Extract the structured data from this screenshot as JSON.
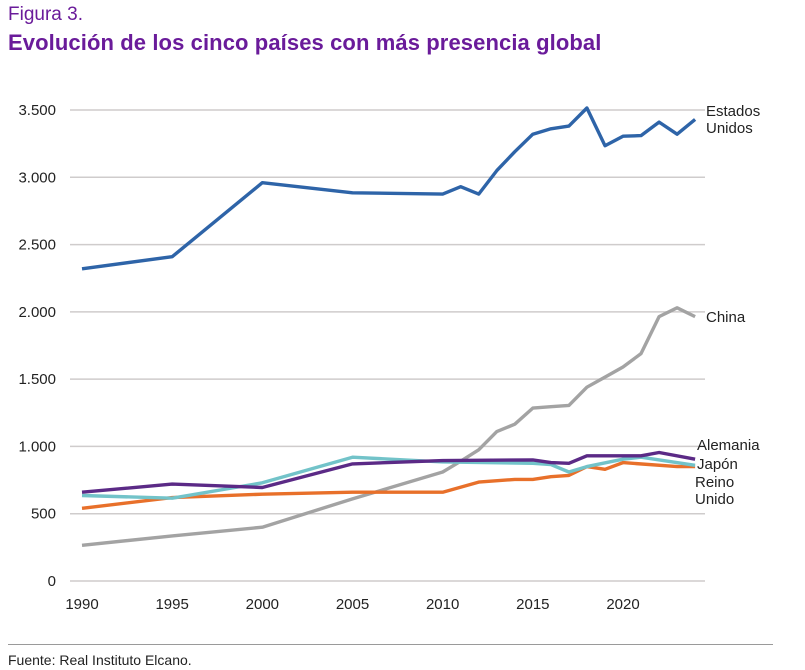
{
  "figure": {
    "label": "Figura 3.",
    "title": "Evolución de los cinco países con más presencia global",
    "source": "Fuente: Real Instituto Elcano."
  },
  "chart_data": {
    "type": "line",
    "title": "Evolución de los cinco países con más presencia global",
    "xlabel": "",
    "ylabel": "",
    "xlim": [
      1990,
      2024
    ],
    "ylim": [
      0,
      3500
    ],
    "grid": true,
    "legend": "inline-right",
    "x_ticks": [
      1990,
      1995,
      2000,
      2005,
      2010,
      2015,
      2020
    ],
    "x_tick_labels": [
      "1990",
      "1995",
      "2000",
      "2005",
      "2010",
      "2015",
      "2020"
    ],
    "y_ticks": [
      0,
      500,
      1000,
      1500,
      2000,
      2500,
      3000,
      3500
    ],
    "y_tick_labels": [
      "0",
      "500",
      "1.000",
      "1.500",
      "2.000",
      "2.500",
      "3.000",
      "3.500"
    ],
    "series": [
      {
        "name": "Estados Unidos",
        "label_lines": [
          "Estados",
          "Unidos"
        ],
        "color": "#2e64a8",
        "x": [
          1990,
          1995,
          2000,
          2005,
          2010,
          2011,
          2012,
          2013,
          2014,
          2015,
          2016,
          2017,
          2018,
          2019,
          2020,
          2021,
          2022,
          2023,
          2024
        ],
        "values": [
          2320,
          2410,
          2960,
          2885,
          2875,
          2930,
          2875,
          3050,
          3190,
          3320,
          3360,
          3380,
          3515,
          3235,
          3305,
          3310,
          3410,
          3320,
          3430
        ]
      },
      {
        "name": "China",
        "label_lines": [
          "China"
        ],
        "color": "#a3a3a3",
        "x": [
          1990,
          1995,
          2000,
          2005,
          2010,
          2011,
          2012,
          2013,
          2014,
          2015,
          2016,
          2017,
          2018,
          2019,
          2020,
          2021,
          2022,
          2023,
          2024
        ],
        "values": [
          265,
          335,
          400,
          610,
          810,
          890,
          975,
          1110,
          1165,
          1285,
          1295,
          1305,
          1440,
          1515,
          1590,
          1690,
          1965,
          2030,
          1965
        ]
      },
      {
        "name": "Japón",
        "label_lines": [
          "Japón"
        ],
        "color": "#72c3c9",
        "x": [
          1990,
          1995,
          2000,
          2005,
          2010,
          2015,
          2016,
          2017,
          2018,
          2020,
          2021,
          2024
        ],
        "values": [
          635,
          615,
          730,
          920,
          885,
          875,
          865,
          810,
          850,
          905,
          920,
          860
        ]
      },
      {
        "name": "Alemania",
        "label_lines": [
          "Alemania"
        ],
        "color": "#5b2a86",
        "x": [
          1990,
          1995,
          2000,
          2005,
          2010,
          2015,
          2016,
          2017,
          2018,
          2020,
          2021,
          2022,
          2024
        ],
        "values": [
          660,
          720,
          695,
          870,
          895,
          900,
          880,
          875,
          930,
          930,
          930,
          955,
          905
        ]
      },
      {
        "name": "Reino Unido",
        "label_lines": [
          "Reino",
          "Unido"
        ],
        "color": "#e8702a",
        "x": [
          1990,
          1995,
          2000,
          2005,
          2010,
          2012,
          2014,
          2015,
          2016,
          2017,
          2018,
          2019,
          2020,
          2023,
          2024
        ],
        "values": [
          540,
          620,
          645,
          660,
          660,
          735,
          755,
          755,
          775,
          785,
          850,
          830,
          880,
          850,
          850
        ]
      }
    ]
  }
}
